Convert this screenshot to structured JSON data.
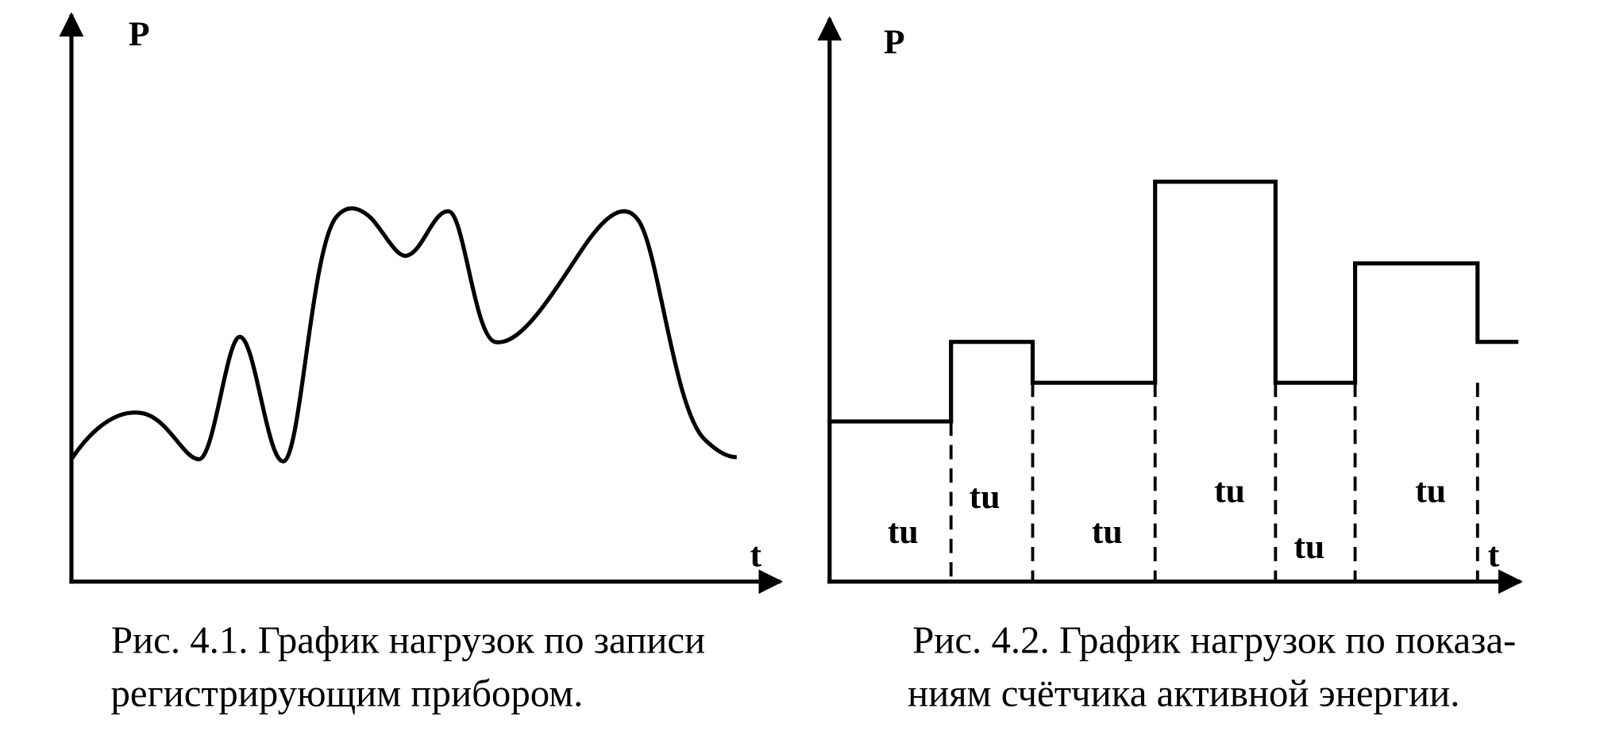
{
  "figures": [
    {
      "axis_y": "P",
      "axis_x": "t",
      "caption": [
        "Рис. 4.1. График нагрузок по записи",
        "регистрирующим прибором."
      ]
    },
    {
      "axis_y": "P",
      "axis_x": "t",
      "interval_labels": [
        "tu",
        "tu",
        "tu",
        "tu",
        "tu",
        "tu"
      ],
      "caption": [
        "Рис. 4.2. График нагрузок по показа-",
        "ниям счётчика активной энергии."
      ]
    }
  ]
}
